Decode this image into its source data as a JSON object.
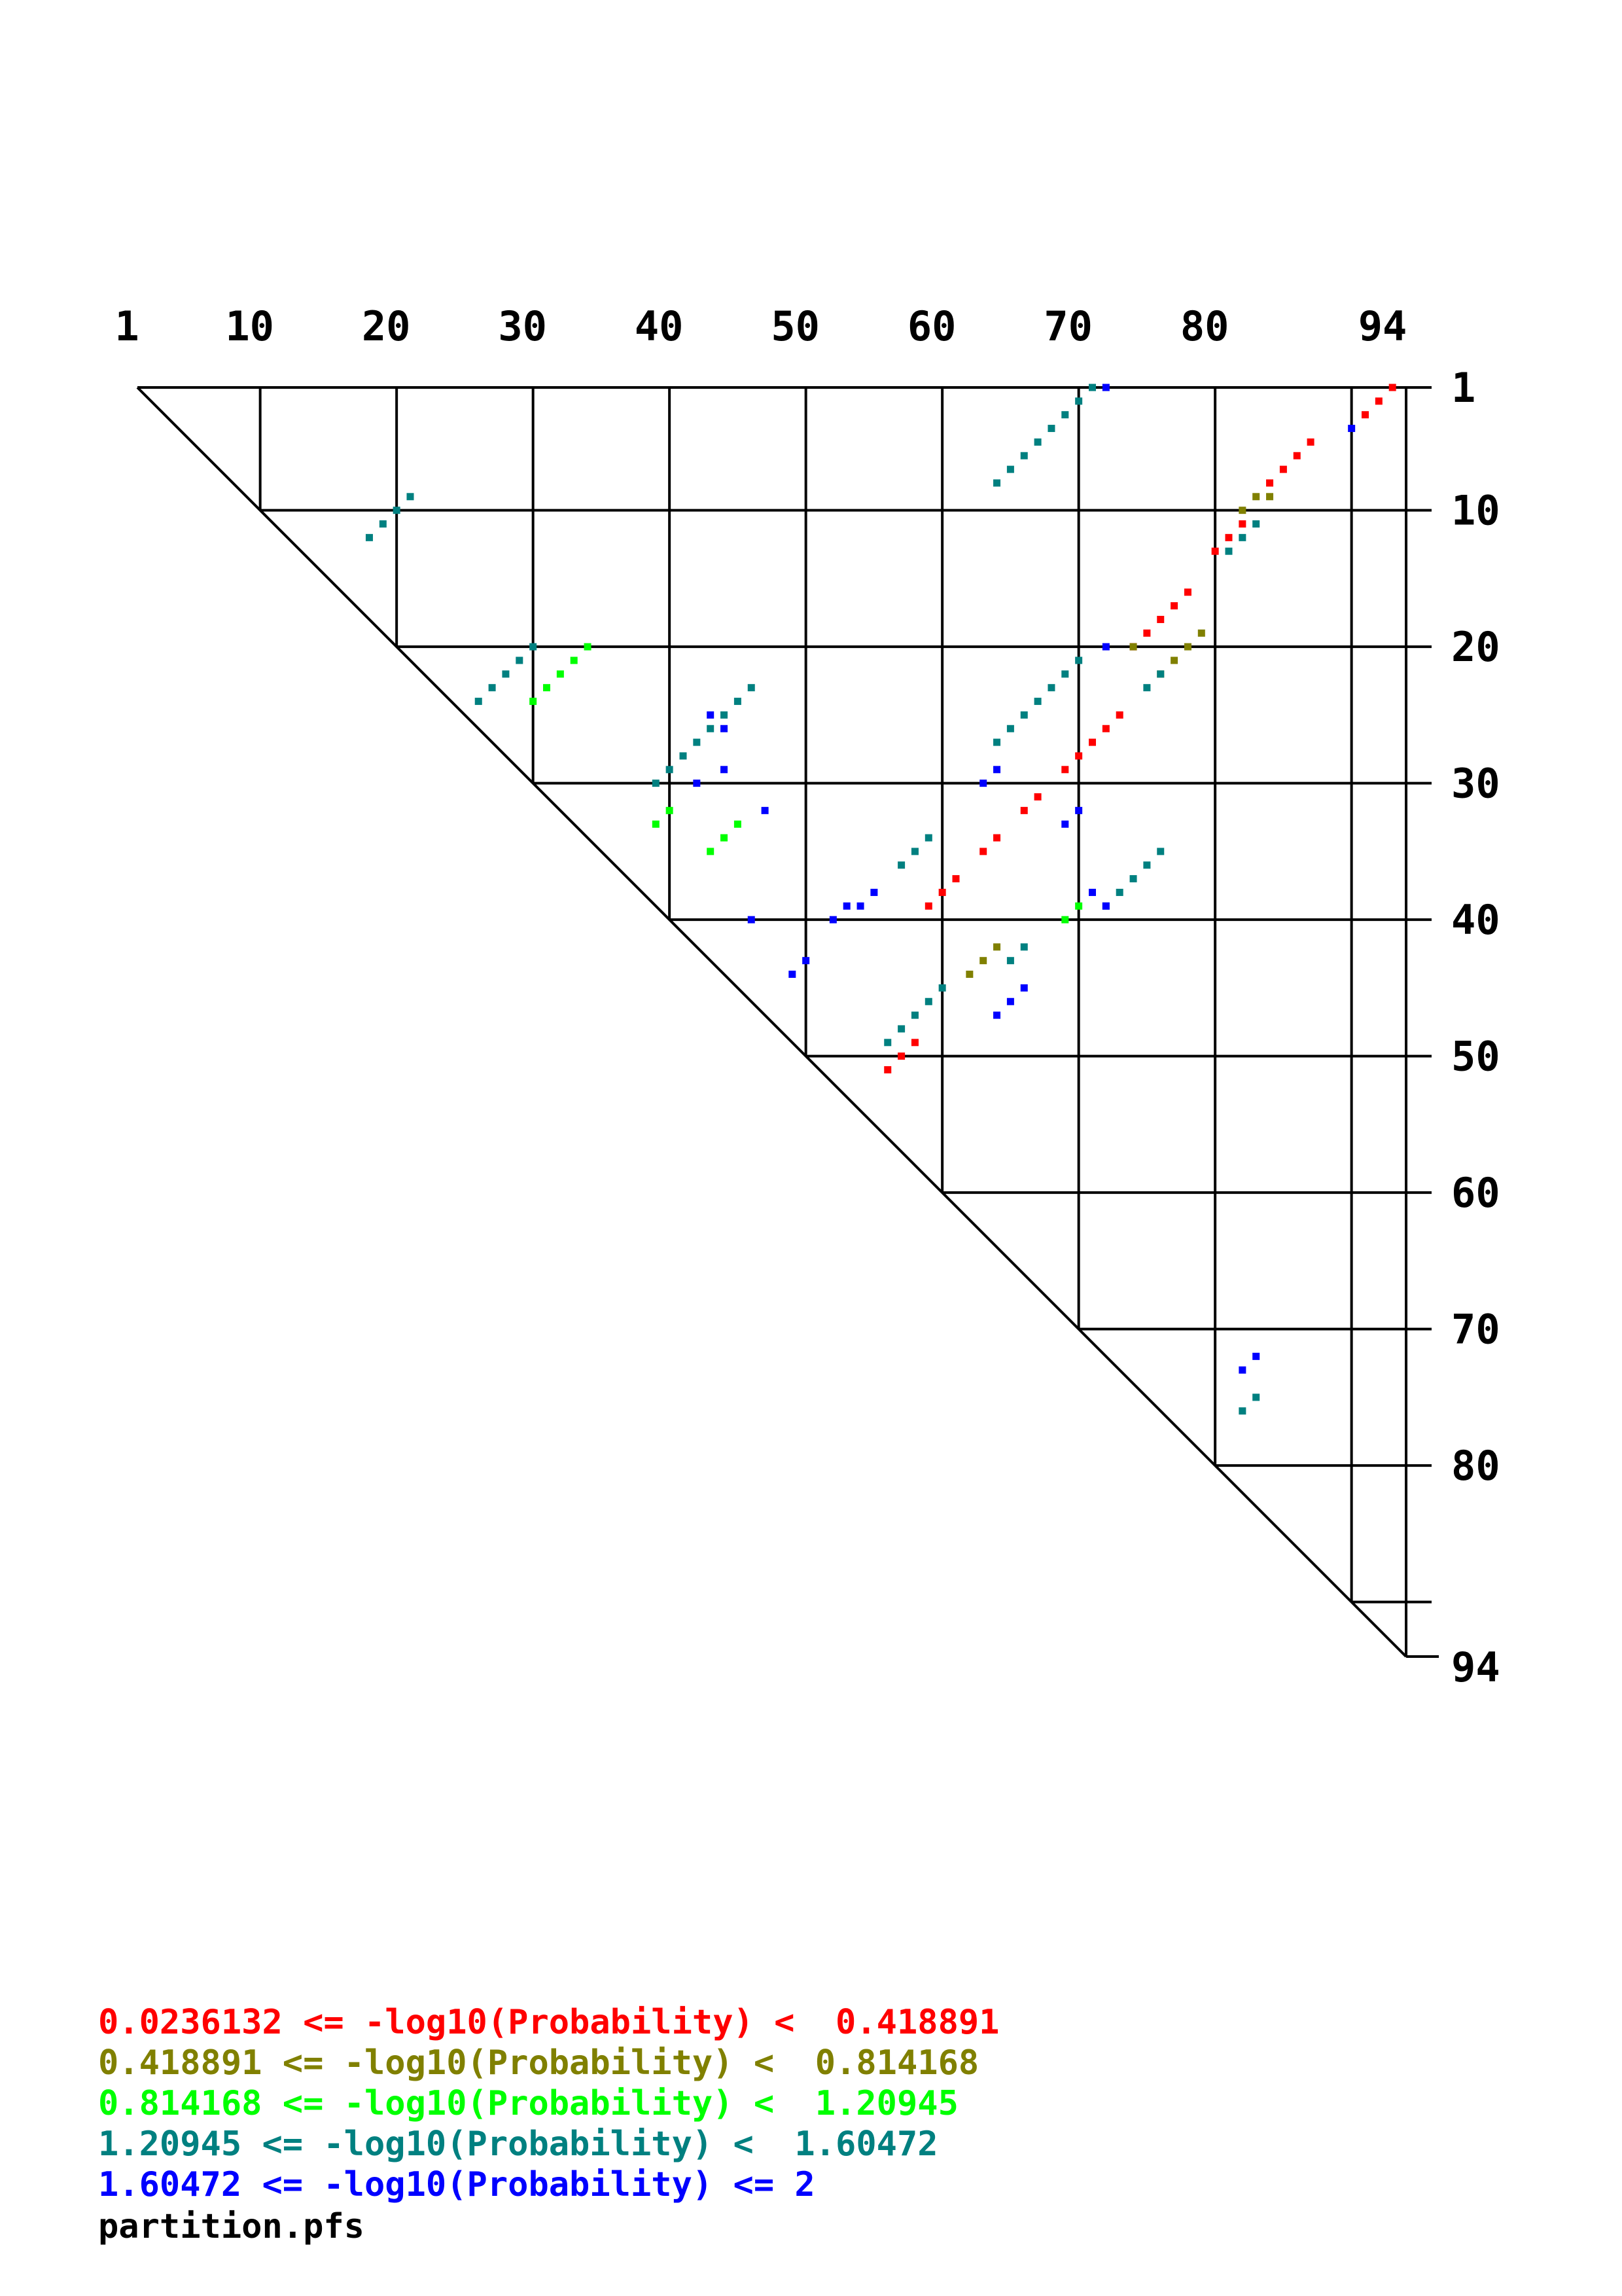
{
  "chart_data": {
    "type": "heatmap",
    "n": 94,
    "top_ticks": [
      "1",
      "10",
      "20",
      "30",
      "40",
      "50",
      "60",
      "70",
      "80",
      "94"
    ],
    "right_ticks": [
      "1",
      "10",
      "20",
      "30",
      "40",
      "50",
      "60",
      "70",
      "80",
      "94"
    ],
    "grid_positions": [
      1,
      10,
      20,
      30,
      40,
      50,
      60,
      70,
      80,
      90,
      94
    ],
    "legend": [
      {
        "color": "#ff0000",
        "label": "0.0236132 <= -log10(Probability) <  0.418891"
      },
      {
        "color": "#808000",
        "label": "0.418891 <= -log10(Probability) <  0.814168"
      },
      {
        "color": "#00ff00",
        "label": "0.814168 <= -log10(Probability) <  1.20945"
      },
      {
        "color": "#008080",
        "label": "1.20945 <= -log10(Probability) <  1.60472"
      },
      {
        "color": "#0000ff",
        "label": "1.60472 <= -log10(Probability) <= 2"
      }
    ],
    "filename": "partition.pfs",
    "series": [
      {
        "bin": 0,
        "color": "#ff0000",
        "points": [
          [
            1,
            93
          ],
          [
            2,
            92
          ],
          [
            3,
            91
          ],
          [
            5,
            87
          ],
          [
            6,
            86
          ],
          [
            7,
            85
          ],
          [
            8,
            84
          ],
          [
            11,
            82
          ],
          [
            12,
            81
          ],
          [
            13,
            80
          ],
          [
            16,
            78
          ],
          [
            17,
            77
          ],
          [
            18,
            76
          ],
          [
            19,
            75
          ],
          [
            20,
            74
          ],
          [
            25,
            73
          ],
          [
            26,
            72
          ],
          [
            27,
            71
          ],
          [
            28,
            70
          ],
          [
            29,
            69
          ],
          [
            31,
            67
          ],
          [
            32,
            66
          ],
          [
            34,
            64
          ],
          [
            35,
            63
          ],
          [
            37,
            61
          ],
          [
            38,
            60
          ],
          [
            39,
            59
          ],
          [
            49,
            58
          ],
          [
            50,
            57
          ],
          [
            51,
            56
          ]
        ]
      },
      {
        "bin": 1,
        "color": "#808000",
        "points": [
          [
            9,
            84
          ],
          [
            9,
            83
          ],
          [
            10,
            82
          ],
          [
            19,
            79
          ],
          [
            20,
            78
          ],
          [
            21,
            77
          ],
          [
            22,
            76
          ],
          [
            20,
            74
          ],
          [
            42,
            64
          ],
          [
            43,
            63
          ],
          [
            44,
            62
          ]
        ]
      },
      {
        "bin": 2,
        "color": "#00ff00",
        "points": [
          [
            20,
            34
          ],
          [
            21,
            33
          ],
          [
            22,
            32
          ],
          [
            23,
            31
          ],
          [
            24,
            30
          ],
          [
            32,
            40
          ],
          [
            33,
            39
          ],
          [
            33,
            45
          ],
          [
            34,
            44
          ],
          [
            35,
            43
          ],
          [
            39,
            70
          ],
          [
            40,
            69
          ]
        ]
      },
      {
        "bin": 3,
        "color": "#008080",
        "points": [
          [
            1,
            71
          ],
          [
            2,
            70
          ],
          [
            3,
            69
          ],
          [
            4,
            68
          ],
          [
            5,
            67
          ],
          [
            6,
            66
          ],
          [
            7,
            65
          ],
          [
            8,
            64
          ],
          [
            9,
            21
          ],
          [
            10,
            20
          ],
          [
            11,
            19
          ],
          [
            12,
            18
          ],
          [
            11,
            83
          ],
          [
            12,
            82
          ],
          [
            13,
            81
          ],
          [
            20,
            30
          ],
          [
            21,
            29
          ],
          [
            22,
            28
          ],
          [
            23,
            27
          ],
          [
            24,
            26
          ],
          [
            21,
            70
          ],
          [
            22,
            69
          ],
          [
            23,
            68
          ],
          [
            24,
            67
          ],
          [
            25,
            66
          ],
          [
            26,
            65
          ],
          [
            27,
            64
          ],
          [
            22,
            76
          ],
          [
            23,
            75
          ],
          [
            23,
            46
          ],
          [
            24,
            45
          ],
          [
            25,
            44
          ],
          [
            26,
            43
          ],
          [
            27,
            42
          ],
          [
            28,
            41
          ],
          [
            29,
            40
          ],
          [
            30,
            39
          ],
          [
            34,
            59
          ],
          [
            35,
            58
          ],
          [
            36,
            57
          ],
          [
            35,
            76
          ],
          [
            36,
            75
          ],
          [
            37,
            74
          ],
          [
            38,
            73
          ],
          [
            39,
            72
          ],
          [
            42,
            66
          ],
          [
            43,
            65
          ],
          [
            45,
            60
          ],
          [
            46,
            59
          ],
          [
            47,
            58
          ],
          [
            48,
            57
          ],
          [
            49,
            56
          ],
          [
            75,
            83
          ],
          [
            76,
            82
          ]
        ]
      },
      {
        "bin": 4,
        "color": "#0000ff",
        "points": [
          [
            1,
            72
          ],
          [
            4,
            90
          ],
          [
            20,
            72
          ],
          [
            25,
            43
          ],
          [
            26,
            44
          ],
          [
            29,
            44
          ],
          [
            30,
            42
          ],
          [
            29,
            64
          ],
          [
            30,
            63
          ],
          [
            32,
            47
          ],
          [
            32,
            70
          ],
          [
            33,
            69
          ],
          [
            38,
            55
          ],
          [
            39,
            54
          ],
          [
            39,
            53
          ],
          [
            40,
            52
          ],
          [
            40,
            46
          ],
          [
            43,
            50
          ],
          [
            44,
            49
          ],
          [
            38,
            71
          ],
          [
            39,
            72
          ],
          [
            45,
            66
          ],
          [
            46,
            65
          ],
          [
            47,
            64
          ],
          [
            72,
            83
          ],
          [
            73,
            82
          ]
        ]
      }
    ]
  }
}
